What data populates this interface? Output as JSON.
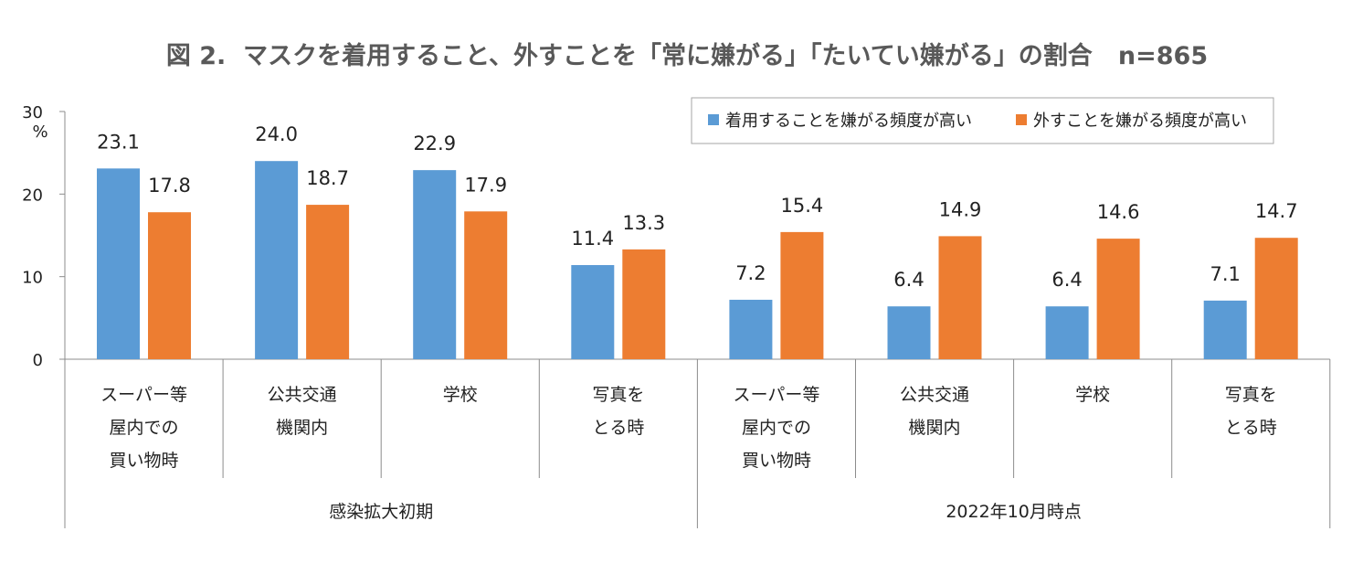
{
  "chart_data": {
    "type": "bar",
    "title": "図 2.  マスクを着用すること、外すことを「常に嫌がる」「たいてい嫌がる」の割合   n=865",
    "y_unit": "%",
    "ylim": [
      0,
      30
    ],
    "yticks": [
      "30",
      "20",
      "10",
      "0"
    ],
    "grid": false,
    "legend_position": "top-right",
    "groups": [
      {
        "label": "感染拡大初期",
        "categories": 4
      },
      {
        "label": "2022年10月時点",
        "categories": 4
      }
    ],
    "categories": [
      [
        "スーパー等",
        "屋内での",
        "買い物時"
      ],
      [
        "公共交通",
        "機関内"
      ],
      [
        "学校"
      ],
      [
        "写真を",
        "とる時"
      ],
      [
        "スーパー等",
        "屋内での",
        "買い物時"
      ],
      [
        "公共交通",
        "機関内"
      ],
      [
        "学校"
      ],
      [
        "写真を",
        "とる時"
      ]
    ],
    "series": [
      {
        "name": "着用することを嫌がる頻度が高い",
        "color": "#5b9bd5",
        "values": [
          23.1,
          24.0,
          22.9,
          11.4,
          7.2,
          6.4,
          6.4,
          7.1
        ],
        "labels": [
          "23.1",
          "24.0",
          "22.9",
          "11.4",
          "7.2",
          "6.4",
          "6.4",
          "7.1"
        ]
      },
      {
        "name": "外すことを嫌がる頻度が高い",
        "color": "#ed7d31",
        "values": [
          17.8,
          18.7,
          17.9,
          13.3,
          15.4,
          14.9,
          14.6,
          14.7
        ],
        "labels": [
          "17.8",
          "18.7",
          "17.9",
          "13.3",
          "15.4",
          "14.9",
          "14.6",
          "14.7"
        ]
      }
    ]
  }
}
